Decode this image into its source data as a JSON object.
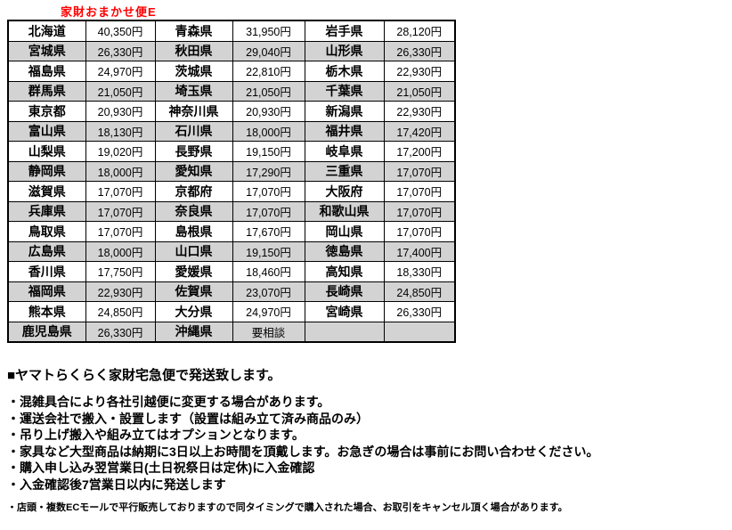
{
  "title": {
    "text": "家財おまかせ便E",
    "color": "#ff0000"
  },
  "table": {
    "row_shade_color": "#d3d3d3",
    "border_color": "#000000",
    "rows": [
      [
        "北海道",
        "40,350円",
        "青森県",
        "31,950円",
        "岩手県",
        "28,120円"
      ],
      [
        "宮城県",
        "26,330円",
        "秋田県",
        "29,040円",
        "山形県",
        "26,330円"
      ],
      [
        "福島県",
        "24,970円",
        "茨城県",
        "22,810円",
        "栃木県",
        "22,930円"
      ],
      [
        "群馬県",
        "21,050円",
        "埼玉県",
        "21,050円",
        "千葉県",
        "21,050円"
      ],
      [
        "東京都",
        "20,930円",
        "神奈川県",
        "20,930円",
        "新潟県",
        "22,930円"
      ],
      [
        "富山県",
        "18,130円",
        "石川県",
        "18,000円",
        "福井県",
        "17,420円"
      ],
      [
        "山梨県",
        "19,020円",
        "長野県",
        "19,150円",
        "岐阜県",
        "17,200円"
      ],
      [
        "静岡県",
        "18,000円",
        "愛知県",
        "17,290円",
        "三重県",
        "17,070円"
      ],
      [
        "滋賀県",
        "17,070円",
        "京都府",
        "17,070円",
        "大阪府",
        "17,070円"
      ],
      [
        "兵庫県",
        "17,070円",
        "奈良県",
        "17,070円",
        "和歌山県",
        "17,070円"
      ],
      [
        "鳥取県",
        "17,070円",
        "島根県",
        "17,670円",
        "岡山県",
        "17,070円"
      ],
      [
        "広島県",
        "18,000円",
        "山口県",
        "19,150円",
        "徳島県",
        "17,400円"
      ],
      [
        "香川県",
        "17,750円",
        "愛媛県",
        "18,460円",
        "高知県",
        "18,330円"
      ],
      [
        "福岡県",
        "22,930円",
        "佐賀県",
        "23,070円",
        "長崎県",
        "24,850円"
      ],
      [
        "熊本県",
        "24,850円",
        "大分県",
        "24,970円",
        "宮崎県",
        "26,330円"
      ],
      [
        "鹿児島県",
        "26,330円",
        "沖縄県",
        "要相談",
        "",
        ""
      ]
    ]
  },
  "notes": {
    "heading": "■ヤマトらくらく家財宅急便で発送致します。",
    "bullets": [
      "・混雑具合により各社引越便に変更する場合があります。",
      "・運送会社で搬入・設置します（設置は組み立て済み商品のみ）",
      "・吊り上げ搬入や組み立てはオプションとなります。",
      "・家具など大型商品は納期に3日以上お時間を頂戴します。お急ぎの場合は事前にお問い合わせください。",
      "・購入申し込み翌営業日(土日祝祭日は定休)に入金確認",
      "・入金確認後7営業日以内に発送します"
    ],
    "footnote": "・店頭・複数ECモールで平行販売しておりますので同タイミングで購入された場合、お取引をキャンセル頂く場合があります。"
  }
}
